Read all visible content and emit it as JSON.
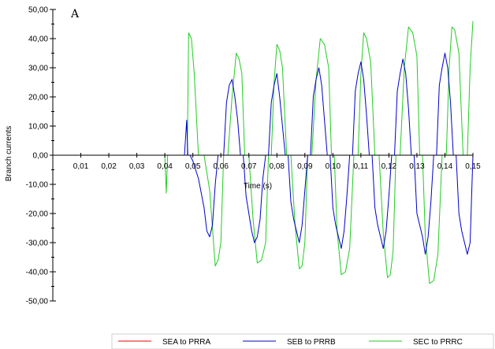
{
  "chart_data": {
    "type": "line",
    "title": "",
    "annotation": "A",
    "xlabel": "Time (s)",
    "ylabel": "Branch currents",
    "xlim": [
      0,
      0.15
    ],
    "ylim": [
      -50,
      50
    ],
    "x_ticks": [
      0.01,
      0.02,
      0.03,
      0.04,
      0.05,
      0.06,
      0.07,
      0.08,
      0.09,
      0.1,
      0.11,
      0.12,
      0.13,
      0.14,
      0.15
    ],
    "x_tick_labels": [
      "0,01",
      "0,02",
      "0,03",
      "0,04",
      "0,05",
      "0,06",
      "0,07",
      "0,08",
      "0,09",
      "0,10",
      "0,11",
      "0,12",
      "0,13",
      "0,14",
      "0,15"
    ],
    "y_ticks": [
      -50,
      -40,
      -30,
      -20,
      -10,
      0,
      10,
      20,
      30,
      40,
      50
    ],
    "y_tick_labels": [
      "-50,00",
      "-40,00",
      "-30,00",
      "-20,00",
      "-10,00",
      "0,00",
      "10,00",
      "20,00",
      "30,00",
      "40,00",
      "50,00"
    ],
    "grid": false,
    "legend_position": "bottom",
    "series": [
      {
        "name": "SEA to PRRA",
        "color": "#ff0000",
        "x": [
          0,
          0.15
        ],
        "y": [
          0,
          0
        ]
      },
      {
        "name": "SEB to PRRB",
        "color": "#0000c8",
        "x": [
          0,
          0.047,
          0.0478,
          0.0482,
          0.049,
          0.05,
          0.052,
          0.054,
          0.055,
          0.056,
          0.057,
          0.058,
          0.059,
          0.06,
          0.061,
          0.062,
          0.063,
          0.064,
          0.065,
          0.066,
          0.067,
          0.068,
          0.069,
          0.07,
          0.071,
          0.072,
          0.073,
          0.074,
          0.075,
          0.076,
          0.077,
          0.078,
          0.079,
          0.08,
          0.081,
          0.082,
          0.083,
          0.084,
          0.085,
          0.086,
          0.087,
          0.088,
          0.089,
          0.09,
          0.091,
          0.092,
          0.093,
          0.094,
          0.095,
          0.096,
          0.097,
          0.098,
          0.099,
          0.1,
          0.101,
          0.102,
          0.103,
          0.104,
          0.105,
          0.106,
          0.107,
          0.108,
          0.109,
          0.11,
          0.111,
          0.112,
          0.113,
          0.114,
          0.115,
          0.116,
          0.117,
          0.118,
          0.119,
          0.12,
          0.121,
          0.122,
          0.123,
          0.124,
          0.125,
          0.126,
          0.127,
          0.128,
          0.129,
          0.13,
          0.131,
          0.132,
          0.133,
          0.134,
          0.135,
          0.136,
          0.137,
          0.138,
          0.139,
          0.14,
          0.141,
          0.142,
          0.143,
          0.144,
          0.145,
          0.146,
          0.147,
          0.148,
          0.149,
          0.15
        ],
        "y": [
          0,
          0,
          12,
          0,
          0,
          -2,
          -8,
          -18,
          -26,
          -28,
          -24,
          -10,
          0,
          0,
          0,
          18,
          24,
          26,
          20,
          12,
          0,
          0,
          -14,
          -20,
          -26,
          -30,
          -28,
          -22,
          -8,
          0,
          0,
          18,
          24,
          28,
          20,
          10,
          0,
          0,
          -16,
          -22,
          -26,
          -30,
          -24,
          -12,
          0,
          0,
          20,
          26,
          30,
          24,
          12,
          0,
          0,
          -18,
          -24,
          -28,
          -32,
          -26,
          -14,
          0,
          0,
          22,
          28,
          32,
          26,
          14,
          0,
          0,
          -18,
          -24,
          -28,
          -32,
          -26,
          -14,
          0,
          0,
          22,
          28,
          33,
          28,
          16,
          0,
          0,
          -20,
          -24,
          -28,
          -34,
          -28,
          -16,
          0,
          0,
          24,
          30,
          35,
          30,
          18,
          0,
          0,
          -20,
          -26,
          -30,
          -34,
          -30,
          0
        ]
      },
      {
        "name": "SEC to PRRC",
        "color": "#22cc22",
        "x": [
          0,
          0.04,
          0.0405,
          0.041,
          0.048,
          0.0485,
          0.0495,
          0.0505,
          0.052,
          0.054,
          0.056,
          0.058,
          0.059,
          0.06,
          0.061,
          0.0625,
          0.064,
          0.0655,
          0.0665,
          0.0675,
          0.0685,
          0.07,
          0.0715,
          0.073,
          0.0745,
          0.076,
          0.077,
          0.078,
          0.079,
          0.08,
          0.081,
          0.082,
          0.0835,
          0.085,
          0.0865,
          0.088,
          0.089,
          0.09,
          0.091,
          0.0925,
          0.094,
          0.0955,
          0.097,
          0.0985,
          0.0995,
          0.1005,
          0.1015,
          0.103,
          0.1045,
          0.106,
          0.1075,
          0.109,
          0.11,
          0.111,
          0.112,
          0.1135,
          0.115,
          0.1165,
          0.118,
          0.1195,
          0.1205,
          0.1215,
          0.1225,
          0.124,
          0.1255,
          0.127,
          0.1285,
          0.13,
          0.131,
          0.132,
          0.133,
          0.1345,
          0.136,
          0.1375,
          0.139,
          0.1405,
          0.1415,
          0.1425,
          0.1435,
          0.145,
          0.1465,
          0.148,
          0.149,
          0.15
        ],
        "y": [
          0,
          0,
          -13,
          0,
          0,
          42,
          40,
          28,
          0,
          0,
          -12,
          -38,
          -36,
          -30,
          0,
          0,
          20,
          35,
          33,
          28,
          0,
          0,
          -22,
          -37,
          -36,
          -30,
          0,
          0,
          25,
          38,
          36,
          30,
          0,
          0,
          -24,
          -39,
          -38,
          -30,
          0,
          0,
          26,
          40,
          38,
          30,
          0,
          0,
          -26,
          -41,
          -40,
          -32,
          0,
          0,
          28,
          42,
          40,
          32,
          0,
          0,
          -27,
          -42,
          -41,
          -33,
          0,
          0,
          30,
          44,
          42,
          34,
          0,
          0,
          -28,
          -44,
          -43,
          -34,
          0,
          0,
          30,
          44,
          43,
          35,
          0,
          0,
          30,
          46
        ]
      }
    ]
  }
}
